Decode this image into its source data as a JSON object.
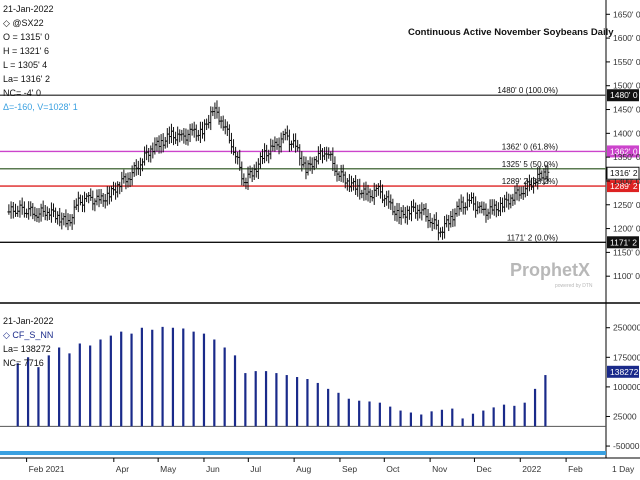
{
  "header": {
    "date": "21-Jan-2022",
    "symbol": "◇ @SX22",
    "open": "O = 1315' 0",
    "high": "H = 1321' 6",
    "low": "L = 1305' 4",
    "last": "La= 1316' 2",
    "net_change": "NC= -4' 0",
    "delta": "Δ=-160, V=1028' 1",
    "delta_color": "#3aa0e0"
  },
  "chart_title": "Continuous Active November Soybeans Daily",
  "lower_header": {
    "date": "21-Jan-2022",
    "symbol": "◇ CF_S_NN",
    "last": "La= 138272",
    "net_change": "NC= 7716"
  },
  "watermark": {
    "brand": "ProphetX",
    "sub": "powered by DTN"
  },
  "timeframe": "1 Day",
  "chart_data": [
    {
      "type": "ohlc",
      "title": "Continuous Active November Soybeans Daily",
      "x": [
        "2021-01-20",
        "2021-01-26",
        "2021-02-01",
        "2021-02-08",
        "2021-02-15",
        "2021-02-22",
        "2021-03-01",
        "2021-03-08",
        "2021-03-15",
        "2021-03-22",
        "2021-03-29",
        "2021-04-05",
        "2021-04-12",
        "2021-04-19",
        "2021-04-26",
        "2021-05-03",
        "2021-05-10",
        "2021-05-17",
        "2021-05-24",
        "2021-05-31",
        "2021-06-07",
        "2021-06-14",
        "2021-06-21",
        "2021-06-28",
        "2021-07-05",
        "2021-07-12",
        "2021-07-19",
        "2021-07-26",
        "2021-08-02",
        "2021-08-09",
        "2021-08-16",
        "2021-08-23",
        "2021-08-30",
        "2021-09-06",
        "2021-09-13",
        "2021-09-20",
        "2021-09-27",
        "2021-10-04",
        "2021-10-11",
        "2021-10-18",
        "2021-10-25",
        "2021-11-01",
        "2021-11-08",
        "2021-11-15",
        "2021-11-22",
        "2021-11-29",
        "2021-12-06",
        "2021-12-13",
        "2021-12-20",
        "2021-12-27",
        "2022-01-03",
        "2022-01-10",
        "2022-01-17",
        "2022-01-21"
      ],
      "close": [
        1235,
        1242,
        1240,
        1232,
        1238,
        1226,
        1210,
        1255,
        1262,
        1258,
        1270,
        1296,
        1312,
        1340,
        1368,
        1380,
        1396,
        1390,
        1402,
        1400,
        1452,
        1422,
        1368,
        1300,
        1322,
        1356,
        1372,
        1394,
        1371,
        1322,
        1350,
        1365,
        1320,
        1300,
        1284,
        1268,
        1280,
        1252,
        1225,
        1238,
        1242,
        1220,
        1195,
        1222,
        1248,
        1256,
        1234,
        1238,
        1250,
        1268,
        1282,
        1300,
        1318,
        1316
      ],
      "x_tick_labels": [
        "Feb 2021",
        "Apr",
        "May",
        "Jun",
        "Jul",
        "Aug",
        "Sep",
        "Oct",
        "Nov",
        "Dec",
        "2022",
        "Feb"
      ],
      "ylim": [
        1050,
        1680
      ],
      "y_ticks": [
        1100,
        1150,
        1200,
        1250,
        1300,
        1350,
        1400,
        1450,
        1500,
        1550,
        1600,
        1650
      ],
      "y_tick_labels": [
        "1100' 0",
        "1150' 0",
        "1200' 0",
        "1250' 0",
        "1300' 0",
        "1350' 0",
        "1400' 0",
        "1450' 0",
        "1500' 0",
        "1550' 0",
        "1600' 0",
        "1650' 0"
      ],
      "fib_levels": [
        {
          "value": 1480,
          "label": "1480' 0 (100.0%)",
          "tag": "1480' 0",
          "color": "#555555"
        },
        {
          "value": 1362,
          "label": "1362' 0 (61.8%)",
          "tag": "1362' 0",
          "color": "#cc44cc"
        },
        {
          "value": 1325.6,
          "label": "1325' 5 (50.0%)",
          "tag": "",
          "color": "#5a7a50"
        },
        {
          "value": 1289.2,
          "label": "1289' 2 (38.2%)",
          "tag": "1289' 2",
          "color": "#dd2222"
        },
        {
          "value": 1171.2,
          "label": "1171' 2 (0.0%)",
          "tag": "1171' 2",
          "color": "#111111"
        }
      ],
      "last_value_tag": "1316' 2",
      "last_value": 1316.2,
      "grid": false
    },
    {
      "type": "bar",
      "title": "",
      "series": [
        {
          "name": "CF_S_NN",
          "color": "#1a2a8a",
          "x": [
            "2021-01-26",
            "2021-02-02",
            "2021-02-09",
            "2021-02-16",
            "2021-02-23",
            "2021-03-02",
            "2021-03-09",
            "2021-03-16",
            "2021-03-23",
            "2021-03-30",
            "2021-04-06",
            "2021-04-13",
            "2021-04-20",
            "2021-04-27",
            "2021-05-04",
            "2021-05-11",
            "2021-05-18",
            "2021-05-25",
            "2021-06-01",
            "2021-06-08",
            "2021-06-15",
            "2021-06-22",
            "2021-06-29",
            "2021-07-06",
            "2021-07-13",
            "2021-07-20",
            "2021-07-27",
            "2021-08-03",
            "2021-08-10",
            "2021-08-17",
            "2021-08-24",
            "2021-08-31",
            "2021-09-07",
            "2021-09-14",
            "2021-09-21",
            "2021-09-28",
            "2021-10-05",
            "2021-10-12",
            "2021-10-19",
            "2021-10-26",
            "2021-11-02",
            "2021-11-09",
            "2021-11-16",
            "2021-11-23",
            "2021-11-30",
            "2021-12-07",
            "2021-12-14",
            "2021-12-21",
            "2021-12-28",
            "2022-01-04",
            "2022-01-11",
            "2022-01-18"
          ],
          "values": [
            160000,
            175000,
            150000,
            180000,
            200000,
            185000,
            210000,
            205000,
            220000,
            230000,
            240000,
            235000,
            250000,
            245000,
            252000,
            250000,
            248000,
            240000,
            235000,
            220000,
            200000,
            180000,
            135000,
            140000,
            140000,
            135000,
            130000,
            125000,
            120000,
            110000,
            95000,
            85000,
            70000,
            65000,
            63000,
            60000,
            50000,
            40000,
            35000,
            30000,
            38000,
            42000,
            45000,
            20000,
            32000,
            40000,
            48000,
            55000,
            52000,
            60000,
            95000,
            130000
          ]
        }
      ],
      "ylim": [
        -60000,
        300000
      ],
      "y_ticks": [
        -50000,
        25000,
        100000,
        175000,
        250000
      ],
      "y_tick_labels": [
        "-50000",
        "25000",
        "100000",
        "175000",
        "250000"
      ],
      "zero_line": 0,
      "last_value_tag": "138272",
      "last_value": 138272
    }
  ]
}
